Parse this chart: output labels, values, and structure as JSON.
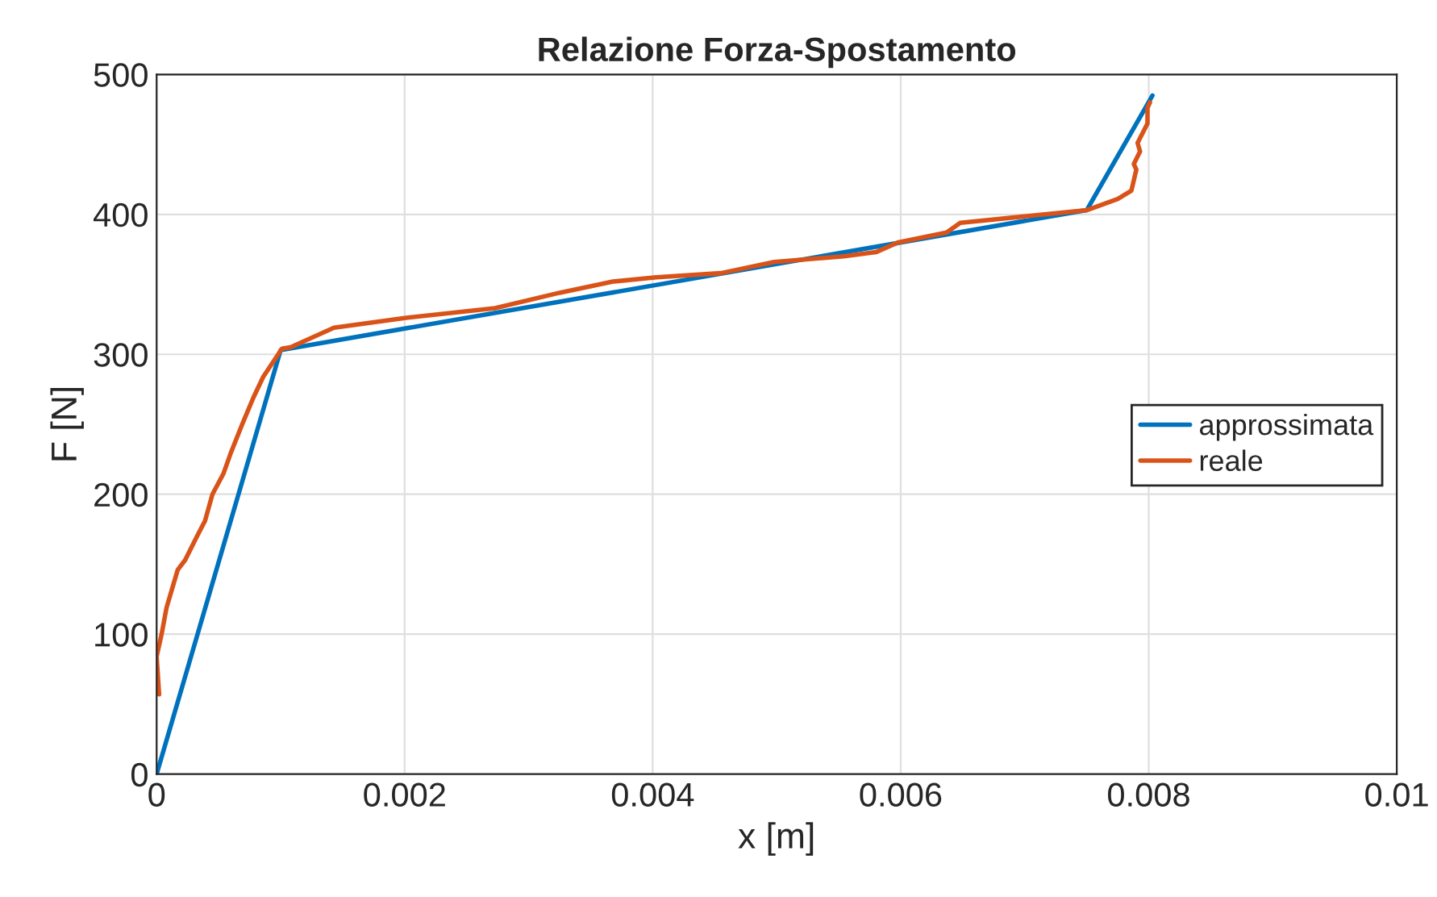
{
  "chart_data": {
    "type": "line",
    "title": "Relazione Forza-Spostamento",
    "xlabel": "x [m]",
    "ylabel": "F [N]",
    "xlim": [
      0,
      0.01
    ],
    "xticks": [
      0,
      0.002,
      0.004,
      0.006,
      0.008,
      0.01
    ],
    "ylim": [
      0,
      500
    ],
    "yticks": [
      0,
      100,
      200,
      300,
      400,
      500
    ],
    "grid": true,
    "legend": "right",
    "series": [
      {
        "name": "approssimata",
        "color": "#0072bd",
        "x": [
          0,
          0.001,
          0.0075,
          0.00803
        ],
        "values": [
          0,
          303,
          403,
          485
        ]
      },
      {
        "name": "reale",
        "color": "#d95319",
        "x": [
          2e-05,
          0.0,
          4e-05,
          8e-05,
          0.00017,
          0.00023,
          0.00032,
          0.00039,
          0.00045,
          0.00054,
          0.0006,
          0.00069,
          0.00078,
          0.00086,
          0.00095,
          0.00101,
          0.00108,
          0.00143,
          0.002,
          0.00273,
          0.00325,
          0.00368,
          0.00403,
          0.00455,
          0.00498,
          0.00554,
          0.0058,
          0.00598,
          0.00637,
          0.00648,
          0.0075,
          0.00775,
          0.00786,
          0.0079,
          0.00788,
          0.00793,
          0.00791,
          0.00799,
          0.00799,
          0.00801
        ],
        "values": [
          57,
          84,
          100,
          119,
          146,
          153,
          169,
          181,
          200,
          215,
          230,
          250,
          269,
          284,
          296,
          304,
          305,
          319,
          326,
          333,
          344,
          352,
          355,
          358,
          366,
          370,
          373,
          380,
          387,
          394,
          403,
          411,
          417,
          432,
          436,
          445,
          451,
          465,
          476,
          480
        ]
      }
    ]
  }
}
